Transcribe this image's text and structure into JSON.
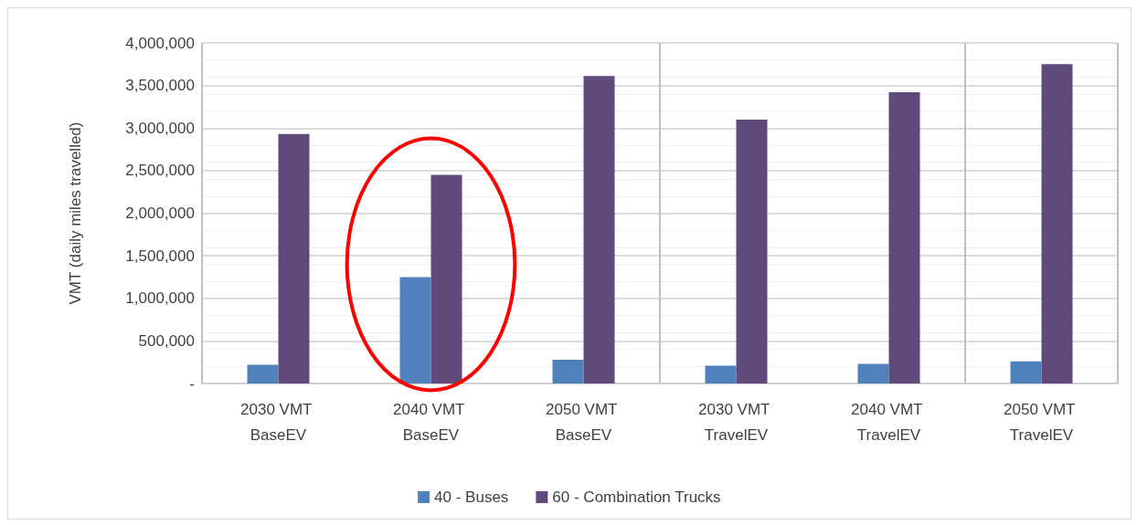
{
  "chart_data": {
    "type": "bar",
    "ylabel": "VMT (daily miles travelled)",
    "categories": [
      "2030 VMT BaseEV",
      "2040 VMT BaseEV",
      "2050 VMT BaseEV",
      "2030 VMT TravelEV",
      "2040 VMT TravelEV",
      "2050 VMT TravelEV"
    ],
    "series": [
      {
        "name": "40 - Buses",
        "color": "#4f81bd",
        "values": [
          220000,
          1250000,
          280000,
          210000,
          230000,
          260000
        ]
      },
      {
        "name": "60 - Combination Trucks",
        "color": "#604a7b",
        "values": [
          2930000,
          2450000,
          3610000,
          3100000,
          3420000,
          3750000
        ]
      }
    ],
    "ylim": [
      0,
      4000000
    ],
    "yticks": [
      {
        "value": 0,
        "label": "-"
      },
      {
        "value": 500000,
        "label": "500,000"
      },
      {
        "value": 1000000,
        "label": "1,000,000"
      },
      {
        "value": 1500000,
        "label": "1,500,000"
      },
      {
        "value": 2000000,
        "label": "2,000,000"
      },
      {
        "value": 2500000,
        "label": "2,500,000"
      },
      {
        "value": 3000000,
        "label": "3,000,000"
      },
      {
        "value": 3500000,
        "label": "3,500,000"
      },
      {
        "value": 4000000,
        "label": "4,000,000"
      }
    ],
    "grid": "y",
    "legend": "bottom"
  }
}
